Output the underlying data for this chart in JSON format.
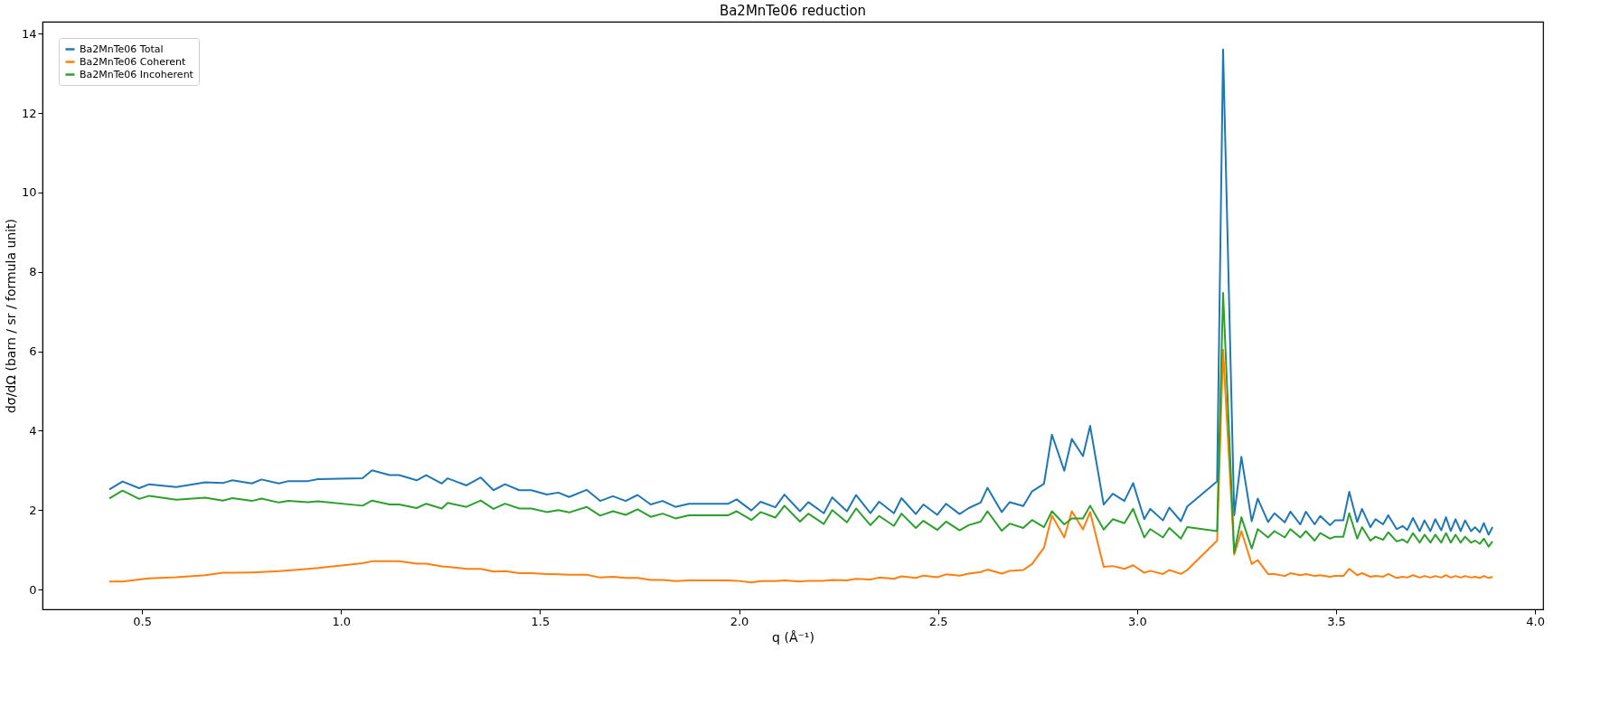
{
  "chart_data": {
    "type": "line",
    "title": "Ba2MnTe06 reduction",
    "xlabel": "q (Å⁻¹)",
    "ylabel": "dσ/dΩ (barn / sr / formula unit)",
    "x": [
      0.418,
      0.451,
      0.493,
      0.518,
      0.586,
      0.659,
      0.703,
      0.727,
      0.776,
      0.8,
      0.844,
      0.868,
      0.917,
      0.942,
      1.054,
      1.078,
      1.122,
      1.146,
      1.19,
      1.214,
      1.253,
      1.268,
      1.315,
      1.351,
      1.383,
      1.412,
      1.448,
      1.478,
      1.517,
      1.546,
      1.573,
      1.617,
      1.651,
      1.683,
      1.715,
      1.745,
      1.778,
      1.808,
      1.84,
      1.874,
      1.973,
      1.994,
      2.031,
      2.054,
      2.091,
      2.114,
      2.153,
      2.174,
      2.213,
      2.234,
      2.271,
      2.294,
      2.33,
      2.352,
      2.389,
      2.408,
      2.444,
      2.463,
      2.498,
      2.52,
      2.554,
      2.577,
      2.607,
      2.624,
      2.66,
      2.68,
      2.714,
      2.736,
      2.766,
      2.786,
      2.817,
      2.836,
      2.864,
      2.882,
      2.916,
      2.939,
      2.968,
      2.99,
      3.018,
      3.033,
      3.065,
      3.081,
      3.11,
      3.126,
      3.201,
      3.216,
      3.244,
      3.262,
      3.288,
      3.303,
      3.329,
      3.345,
      3.371,
      3.385,
      3.41,
      3.424,
      3.446,
      3.46,
      3.485,
      3.497,
      3.518,
      3.533,
      3.553,
      3.565,
      3.586,
      3.599,
      3.618,
      3.631,
      3.652,
      3.667,
      3.679,
      3.693,
      3.71,
      3.722,
      3.737,
      3.749,
      3.764,
      3.776,
      3.788,
      3.8,
      3.813,
      3.824,
      3.839,
      3.849,
      3.861,
      3.871,
      3.883,
      3.893
    ],
    "series": [
      {
        "name": "Ba2MnTe06 Total",
        "color": "#1f77b4",
        "values": [
          2.52,
          2.72,
          2.55,
          2.65,
          2.58,
          2.7,
          2.68,
          2.75,
          2.67,
          2.77,
          2.67,
          2.73,
          2.73,
          2.78,
          2.8,
          3.0,
          2.88,
          2.88,
          2.75,
          2.88,
          2.67,
          2.8,
          2.62,
          2.82,
          2.5,
          2.65,
          2.5,
          2.5,
          2.39,
          2.44,
          2.33,
          2.51,
          2.23,
          2.35,
          2.23,
          2.38,
          2.14,
          2.23,
          2.08,
          2.16,
          2.16,
          2.27,
          1.99,
          2.21,
          2.07,
          2.39,
          1.97,
          2.2,
          1.92,
          2.32,
          1.97,
          2.38,
          1.92,
          2.21,
          1.92,
          2.3,
          1.9,
          2.14,
          1.88,
          2.16,
          1.9,
          2.05,
          2.19,
          2.56,
          1.95,
          2.2,
          2.1,
          2.47,
          2.66,
          3.9,
          2.99,
          3.79,
          3.36,
          4.12,
          2.14,
          2.41,
          2.23,
          2.68,
          1.77,
          2.03,
          1.74,
          2.06,
          1.72,
          2.09,
          2.72,
          13.6,
          1.87,
          3.34,
          1.72,
          2.29,
          1.7,
          1.92,
          1.69,
          1.96,
          1.64,
          1.96,
          1.64,
          1.85,
          1.62,
          1.74,
          1.74,
          2.46,
          1.7,
          2.03,
          1.57,
          1.77,
          1.64,
          1.87,
          1.52,
          1.6,
          1.5,
          1.8,
          1.47,
          1.74,
          1.47,
          1.77,
          1.49,
          1.82,
          1.47,
          1.77,
          1.47,
          1.74,
          1.47,
          1.57,
          1.44,
          1.67,
          1.38,
          1.57
        ]
      },
      {
        "name": "Ba2MnTe06 Coherent",
        "color": "#ff7f0e",
        "values": [
          0.2,
          0.2,
          0.25,
          0.28,
          0.31,
          0.36,
          0.42,
          0.42,
          0.43,
          0.44,
          0.46,
          0.48,
          0.52,
          0.54,
          0.66,
          0.71,
          0.71,
          0.71,
          0.65,
          0.65,
          0.58,
          0.57,
          0.52,
          0.52,
          0.45,
          0.46,
          0.41,
          0.41,
          0.39,
          0.38,
          0.37,
          0.37,
          0.3,
          0.32,
          0.29,
          0.29,
          0.24,
          0.24,
          0.21,
          0.23,
          0.23,
          0.22,
          0.18,
          0.21,
          0.21,
          0.23,
          0.2,
          0.22,
          0.22,
          0.24,
          0.23,
          0.27,
          0.25,
          0.3,
          0.27,
          0.33,
          0.29,
          0.35,
          0.31,
          0.38,
          0.35,
          0.4,
          0.44,
          0.5,
          0.4,
          0.47,
          0.49,
          0.64,
          1.05,
          1.86,
          1.31,
          1.97,
          1.51,
          1.95,
          0.57,
          0.59,
          0.52,
          0.61,
          0.42,
          0.47,
          0.39,
          0.49,
          0.39,
          0.49,
          1.23,
          6.04,
          0.88,
          1.47,
          0.64,
          0.74,
          0.39,
          0.39,
          0.34,
          0.41,
          0.36,
          0.39,
          0.34,
          0.36,
          0.32,
          0.34,
          0.34,
          0.52,
          0.36,
          0.41,
          0.32,
          0.34,
          0.32,
          0.39,
          0.29,
          0.32,
          0.3,
          0.36,
          0.3,
          0.34,
          0.3,
          0.34,
          0.3,
          0.36,
          0.3,
          0.34,
          0.3,
          0.34,
          0.3,
          0.32,
          0.29,
          0.34,
          0.29,
          0.32
        ]
      },
      {
        "name": "Ba2MnTe06 Incoherent",
        "color": "#2ca02c",
        "values": [
          2.29,
          2.49,
          2.28,
          2.36,
          2.26,
          2.31,
          2.24,
          2.3,
          2.23,
          2.29,
          2.19,
          2.23,
          2.2,
          2.22,
          2.11,
          2.24,
          2.14,
          2.14,
          2.05,
          2.16,
          2.04,
          2.18,
          2.08,
          2.24,
          2.03,
          2.16,
          2.04,
          2.04,
          1.95,
          2.0,
          1.94,
          2.08,
          1.86,
          1.97,
          1.88,
          2.02,
          1.83,
          1.91,
          1.79,
          1.87,
          1.87,
          1.97,
          1.75,
          1.95,
          1.81,
          2.11,
          1.71,
          1.91,
          1.65,
          2.0,
          1.69,
          2.04,
          1.62,
          1.85,
          1.6,
          1.91,
          1.55,
          1.73,
          1.5,
          1.71,
          1.49,
          1.62,
          1.71,
          1.97,
          1.48,
          1.66,
          1.55,
          1.75,
          1.57,
          1.97,
          1.64,
          1.79,
          1.79,
          2.11,
          1.51,
          1.77,
          1.67,
          2.03,
          1.31,
          1.52,
          1.31,
          1.55,
          1.28,
          1.57,
          1.47,
          7.47,
          0.93,
          1.82,
          1.03,
          1.52,
          1.31,
          1.47,
          1.31,
          1.52,
          1.31,
          1.47,
          1.23,
          1.42,
          1.28,
          1.33,
          1.33,
          1.92,
          1.28,
          1.57,
          1.23,
          1.33,
          1.25,
          1.44,
          1.21,
          1.26,
          1.18,
          1.42,
          1.18,
          1.38,
          1.18,
          1.38,
          1.18,
          1.42,
          1.18,
          1.38,
          1.18,
          1.33,
          1.18,
          1.23,
          1.15,
          1.28,
          1.08,
          1.21
        ]
      }
    ],
    "xlim": [
      0.25,
      4.02
    ],
    "ylim": [
      -0.5,
      14.3
    ],
    "xticks": [
      0.5,
      {
        "value": 1,
        "label": "1.0"
      },
      1.5,
      {
        "value": 2,
        "label": "2.0"
      },
      2.5,
      {
        "value": 3,
        "label": "3.0"
      },
      3.5,
      {
        "value": 4,
        "label": "4.0"
      }
    ],
    "yticks": [
      0,
      2,
      4,
      6,
      8,
      10,
      12,
      14
    ],
    "grid": false,
    "legend": "top left"
  }
}
